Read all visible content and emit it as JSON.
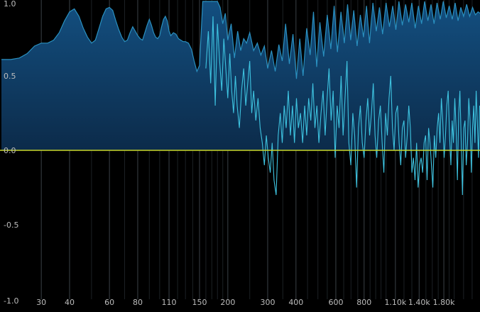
{
  "chart_data": {
    "type": "line",
    "x_scale": "log",
    "xlim": [
      20,
      2600
    ],
    "ylim": [
      -1.0,
      1.0
    ],
    "grid": true,
    "y_ticks": [
      {
        "value": 1.0,
        "label": "1.0"
      },
      {
        "value": 0.5,
        "label": "0.5"
      },
      {
        "value": 0.0,
        "label": "0.0"
      },
      {
        "value": -0.5,
        "label": "-0.5"
      },
      {
        "value": -1.0,
        "label": "-1.0"
      }
    ],
    "x_ticks": [
      {
        "value": 30,
        "label": "30"
      },
      {
        "value": 40,
        "label": "40"
      },
      {
        "value": 60,
        "label": "60"
      },
      {
        "value": 80,
        "label": "80"
      },
      {
        "value": 110,
        "label": "110"
      },
      {
        "value": 150,
        "label": "150"
      },
      {
        "value": 200,
        "label": "200"
      },
      {
        "value": 300,
        "label": "300"
      },
      {
        "value": 400,
        "label": "400"
      },
      {
        "value": 600,
        "label": "600"
      },
      {
        "value": 800,
        "label": "800"
      },
      {
        "value": 1100,
        "label": "1.10k"
      },
      {
        "value": 1400,
        "label": "1.40k"
      },
      {
        "value": 1800,
        "label": "1.80k"
      }
    ],
    "minor_grid_x": [
      50,
      70,
      90,
      100,
      120,
      130,
      140,
      160,
      170,
      180,
      190,
      250,
      350,
      450,
      500,
      550,
      650,
      700,
      750,
      850,
      900,
      950,
      1000,
      1200,
      1300,
      1500,
      1600,
      1700,
      1900,
      2000,
      2200,
      2400
    ],
    "zero_line_color": "#c8d62a",
    "fill_color": "#0f4d7f",
    "series": [
      {
        "style": "envelope",
        "color": "#2a90c0",
        "x": [
          20,
          22,
          24,
          26,
          28,
          30,
          32,
          34,
          36,
          38,
          40,
          42,
          44,
          46,
          48,
          50,
          52,
          54,
          56,
          58,
          60,
          62,
          64,
          66,
          68,
          70,
          72,
          74,
          76,
          78,
          80,
          82,
          84,
          86,
          88,
          90,
          92,
          94,
          96,
          98,
          100,
          102,
          104,
          106,
          108,
          110,
          112,
          115,
          118,
          121,
          124,
          127,
          130,
          134,
          138,
          142,
          146,
          150,
          155,
          160,
          165,
          170,
          175,
          180,
          185,
          190,
          195,
          200,
          207,
          214,
          221,
          228,
          235,
          242,
          250,
          260,
          270,
          280,
          290,
          300,
          312,
          324,
          336,
          348,
          360,
          374,
          388,
          402,
          416,
          430,
          446,
          462,
          478,
          494,
          510,
          530,
          550,
          570,
          590,
          610,
          632,
          654,
          676,
          698,
          720,
          745,
          770,
          795,
          820,
          845,
          875,
          905,
          935,
          965,
          1000,
          1035,
          1070,
          1105,
          1140,
          1180,
          1220,
          1260,
          1300,
          1345,
          1390,
          1435,
          1480,
          1530,
          1580,
          1630,
          1680,
          1735,
          1790,
          1845,
          1900,
          1960,
          2020,
          2080,
          2140,
          2200,
          2270,
          2340,
          2410,
          2480,
          2550,
          2600
        ],
        "y": [
          0.61,
          0.61,
          0.62,
          0.65,
          0.7,
          0.72,
          0.72,
          0.74,
          0.79,
          0.87,
          0.93,
          0.95,
          0.9,
          0.82,
          0.76,
          0.72,
          0.74,
          0.82,
          0.9,
          0.95,
          0.96,
          0.94,
          0.87,
          0.81,
          0.76,
          0.73,
          0.74,
          0.79,
          0.83,
          0.8,
          0.77,
          0.75,
          0.74,
          0.79,
          0.84,
          0.88,
          0.84,
          0.79,
          0.76,
          0.75,
          0.77,
          0.83,
          0.88,
          0.9,
          0.87,
          0.8,
          0.77,
          0.79,
          0.78,
          0.75,
          0.74,
          0.73,
          0.73,
          0.72,
          0.68,
          0.6,
          0.53,
          0.57,
          1.0,
          1.0,
          1.0,
          1.0,
          1.0,
          1.0,
          0.96,
          0.85,
          0.92,
          0.74,
          0.85,
          0.62,
          0.8,
          0.67,
          0.75,
          0.72,
          0.79,
          0.67,
          0.72,
          0.64,
          0.7,
          0.55,
          0.67,
          0.53,
          0.71,
          0.6,
          0.85,
          0.58,
          0.78,
          0.48,
          0.75,
          0.5,
          0.82,
          0.64,
          0.93,
          0.56,
          0.86,
          0.63,
          0.91,
          0.68,
          0.97,
          0.66,
          0.93,
          0.72,
          0.98,
          0.74,
          0.94,
          0.7,
          0.91,
          0.76,
          0.97,
          0.72,
          0.99,
          0.8,
          0.96,
          0.78,
          0.99,
          0.83,
          0.97,
          0.81,
          1.0,
          0.84,
          0.98,
          0.86,
          0.99,
          0.82,
          0.97,
          0.85,
          1.0,
          0.87,
          0.98,
          0.85,
          0.99,
          0.88,
          1.0,
          0.89,
          0.97,
          0.88,
          0.99,
          0.87,
          0.96,
          0.9,
          0.98,
          0.9,
          0.96,
          0.91,
          0.93,
          0.92
        ]
      },
      {
        "style": "detail",
        "color": "#3ec3e0",
        "x": [
          160,
          164,
          168,
          172,
          176,
          180,
          184,
          188,
          192,
          196,
          200,
          204,
          208,
          212,
          216,
          220,
          225,
          230,
          235,
          240,
          245,
          250,
          255,
          260,
          266,
          272,
          278,
          284,
          290,
          296,
          302,
          308,
          314,
          320,
          327,
          334,
          341,
          348,
          355,
          362,
          370,
          378,
          386,
          394,
          402,
          410,
          419,
          428,
          437,
          446,
          455,
          465,
          475,
          485,
          495,
          505,
          516,
          527,
          538,
          549,
          560,
          572,
          584,
          596,
          608,
          620,
          633,
          646,
          659,
          672,
          685,
          699,
          713,
          727,
          741,
          755,
          770,
          785,
          800,
          815,
          830,
          846,
          862,
          878,
          894,
          910,
          927,
          944,
          961,
          978,
          995,
          1013,
          1031,
          1049,
          1067,
          1085,
          1104,
          1123,
          1142,
          1161,
          1180,
          1200,
          1220,
          1240,
          1260,
          1280,
          1301,
          1322,
          1343,
          1364,
          1385,
          1407,
          1429,
          1451,
          1473,
          1495,
          1518,
          1541,
          1564,
          1587,
          1610,
          1634,
          1658,
          1682,
          1706,
          1730,
          1755,
          1780,
          1805,
          1830,
          1855,
          1881,
          1907,
          1933,
          1959,
          1985,
          2012,
          2039,
          2066,
          2093,
          2120,
          2148,
          2176,
          2204,
          2232,
          2260,
          2290,
          2320,
          2350,
          2380,
          2410,
          2440,
          2470,
          2500,
          2530,
          2560,
          2590
        ],
        "y": [
          0.55,
          0.8,
          0.45,
          0.9,
          0.3,
          0.85,
          0.6,
          0.4,
          0.75,
          0.55,
          0.35,
          0.65,
          0.4,
          0.25,
          0.5,
          0.3,
          0.15,
          0.4,
          0.55,
          0.3,
          0.45,
          0.6,
          0.25,
          0.4,
          0.2,
          0.35,
          0.15,
          0.05,
          -0.1,
          0.1,
          -0.05,
          -0.15,
          0.05,
          -0.2,
          -0.3,
          0.1,
          0.25,
          0.05,
          0.3,
          0.15,
          0.4,
          0.1,
          0.3,
          0.05,
          0.35,
          0.15,
          0.25,
          0.05,
          0.3,
          0.1,
          0.35,
          0.2,
          0.45,
          0.15,
          0.3,
          0.05,
          0.25,
          0.4,
          0.1,
          0.35,
          0.55,
          0.2,
          0.4,
          -0.05,
          0.3,
          0.15,
          0.5,
          0.1,
          0.35,
          0.6,
          0.05,
          -0.1,
          0.25,
          0.1,
          -0.25,
          0.15,
          0.3,
          0.05,
          -0.05,
          0.2,
          0.35,
          0.1,
          0.25,
          0.45,
          0.1,
          -0.05,
          0.2,
          0.3,
          0.05,
          -0.15,
          0.25,
          0.1,
          0.35,
          0.5,
          0.15,
          0.0,
          0.25,
          0.3,
          0.05,
          -0.1,
          0.15,
          0.2,
          -0.05,
          0.1,
          0.3,
          0.15,
          -0.15,
          -0.05,
          -0.2,
          0.05,
          -0.25,
          -0.1,
          -0.05,
          -0.15,
          0.05,
          0.1,
          -0.2,
          0.15,
          0.05,
          -0.1,
          -0.25,
          0.1,
          -0.05,
          0.15,
          0.25,
          0.05,
          0.35,
          0.2,
          -0.05,
          0.1,
          0.3,
          0.4,
          0.1,
          -0.1,
          0.2,
          0.05,
          0.35,
          0.15,
          -0.2,
          0.25,
          0.4,
          0.05,
          -0.3,
          0.15,
          0.2,
          -0.1,
          0.05,
          0.35,
          0.2,
          -0.15,
          0.15,
          0.3,
          0.05,
          0.4,
          0.2,
          -0.05,
          0.3
        ]
      }
    ]
  }
}
